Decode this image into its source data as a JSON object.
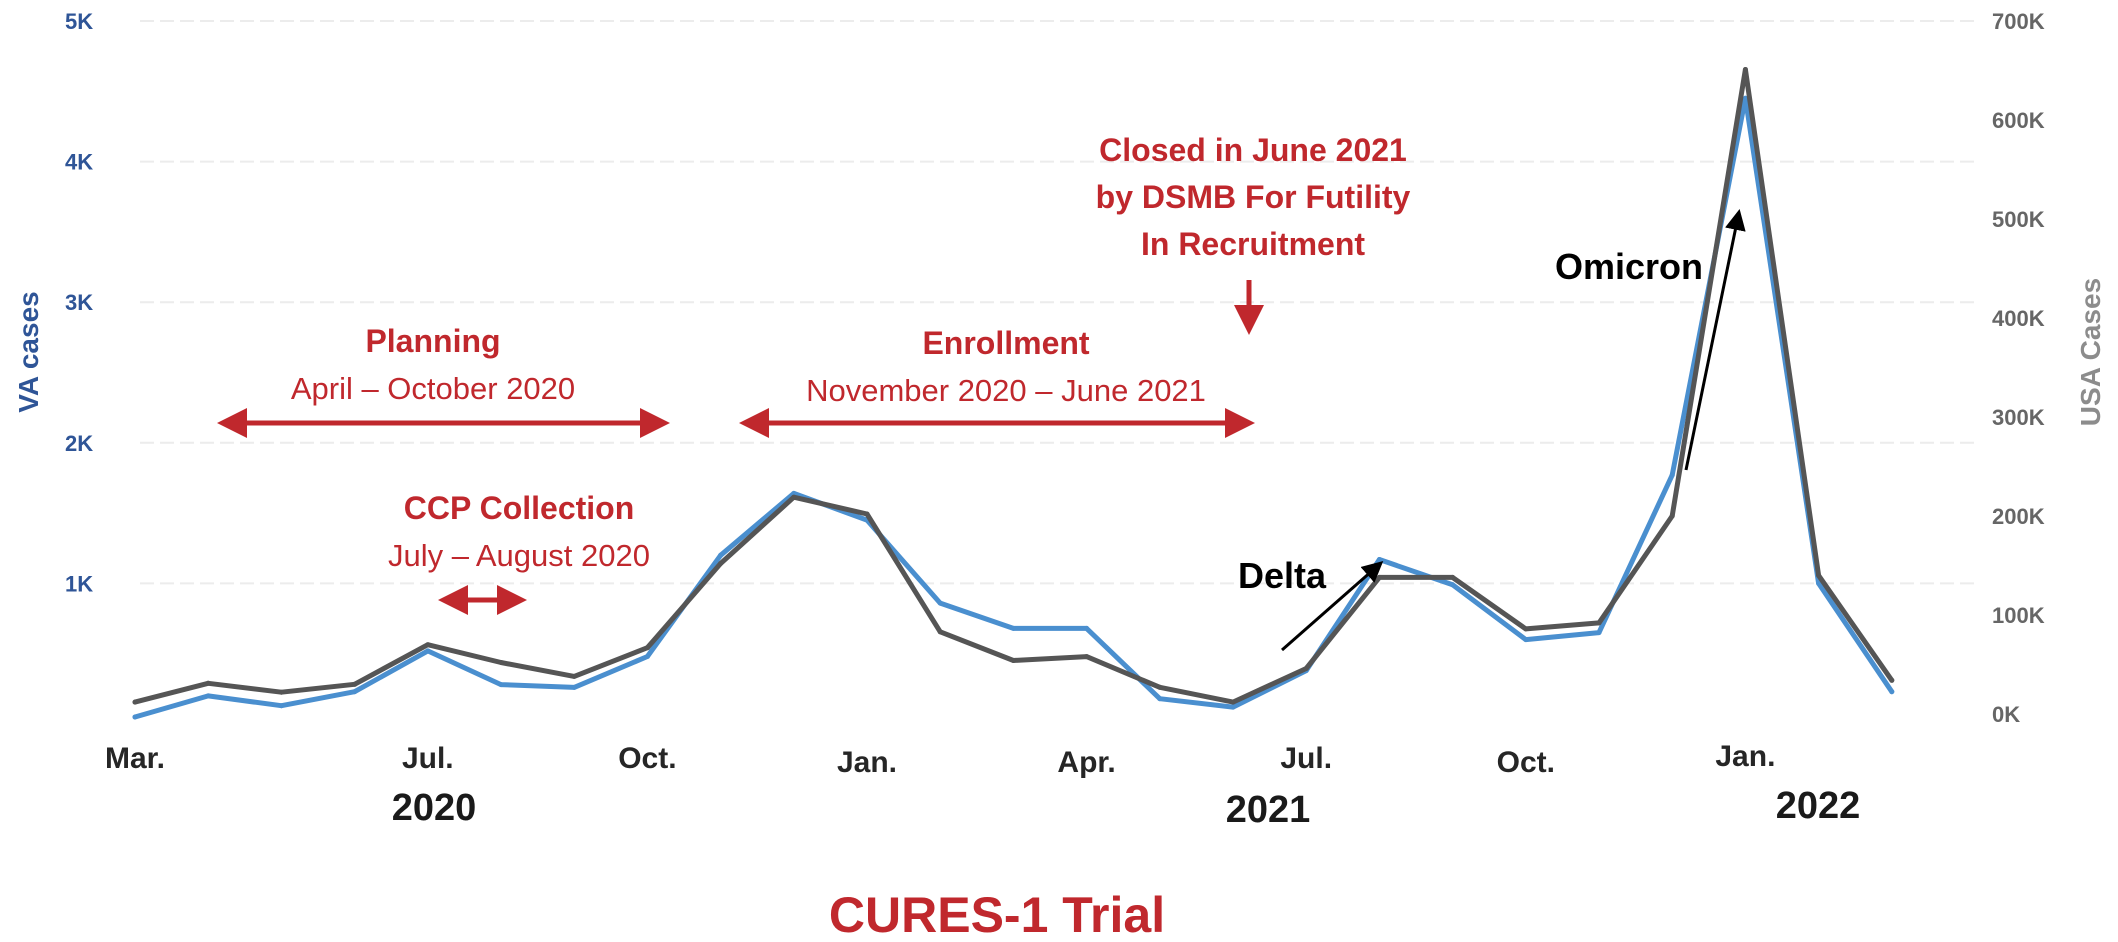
{
  "chart_data": {
    "type": "line",
    "title": "CURES-1 Trial",
    "y_left_label": "VA cases",
    "y_right_label": "USA Cases",
    "y_left_ticks": [
      "1K",
      "2K",
      "3K",
      "4K",
      "5K"
    ],
    "y_right_ticks": [
      "0K",
      "100K",
      "200K",
      "300K",
      "400K",
      "500K",
      "600K",
      "700K"
    ],
    "ylim_left": [
      0,
      5000
    ],
    "ylim_right": [
      0,
      700000
    ],
    "x_ticks": [
      "Mar.",
      "Jul.",
      "Oct.",
      "Jan.",
      "Apr.",
      "Jul.",
      "Oct.",
      "Jan."
    ],
    "x_years": [
      "2020",
      "2021",
      "2022"
    ],
    "x": [
      "2020-03",
      "2020-04",
      "2020-05",
      "2020-06",
      "2020-07",
      "2020-08",
      "2020-09",
      "2020-10",
      "2020-11",
      "2020-12",
      "2021-01",
      "2021-02",
      "2021-03",
      "2021-04",
      "2021-05",
      "2021-06",
      "2021-07",
      "2021-08",
      "2021-09",
      "2021-10",
      "2021-11",
      "2021-12",
      "2022-01",
      "2022-02",
      "2022-03"
    ],
    "grid": true,
    "series": [
      {
        "name": "VA cases",
        "color": "#4a8fcf",
        "axis": "left",
        "values": [
          50,
          200,
          130,
          230,
          520,
          280,
          260,
          480,
          1200,
          1640,
          1450,
          860,
          680,
          680,
          180,
          120,
          380,
          1170,
          990,
          600,
          650,
          1770,
          4450,
          1000,
          230
        ]
      },
      {
        "name": "USA Cases",
        "color": "#555555",
        "axis": "right",
        "values": [
          12000,
          31000,
          22000,
          30000,
          70000,
          52000,
          38000,
          67000,
          152000,
          219000,
          202000,
          83000,
          54000,
          58000,
          27000,
          12000,
          46000,
          138000,
          138000,
          86000,
          92000,
          200000,
          651000,
          140000,
          34000
        ]
      }
    ],
    "annotations": {
      "planning_title": "Planning",
      "planning_dates": "April – October 2020",
      "enrollment_title": "Enrollment",
      "enrollment_dates": "November 2020 – June 2021",
      "closed_line1": "Closed in June 2021",
      "closed_line2": "by DSMB For Futility",
      "closed_line3": "In Recruitment",
      "ccp_title": "CCP Collection",
      "ccp_dates": "July –  August 2020",
      "delta": "Delta",
      "omicron": "Omicron"
    },
    "colors": {
      "annotation": "#c0282d",
      "va": "#4a8fcf",
      "usa": "#555555"
    }
  }
}
